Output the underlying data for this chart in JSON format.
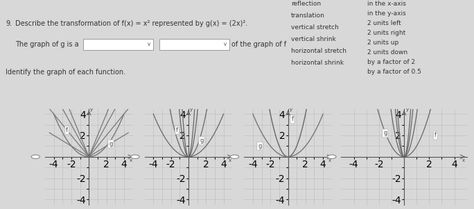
{
  "title_text": "9.   Describe the transformation of f(x) = x² represented by g(x) = (2x)².",
  "problem_line2": "The graph of g is a",
  "dropdown1_text": "",
  "dropdown2_text": "",
  "of_graph": "of the graph of f",
  "identify_text": "Identify the graph of each function.",
  "right_column": [
    "in the x-axis",
    "in the y-axis",
    "2 units left",
    "2 units right",
    "2 units up",
    "2 units down",
    "by a factor of 2",
    "by a factor of 0.5"
  ],
  "left_column": [
    "reflection",
    "translation",
    "vertical stretch",
    "vertical shrink",
    "horizontal stretch",
    "horizontal shrink"
  ],
  "bg_color": "#e8e8e8",
  "graph_bg": "#d8d8d8",
  "grid_color": "#bbbbbb",
  "curve_color": "#555555",
  "label_color": "#777777"
}
